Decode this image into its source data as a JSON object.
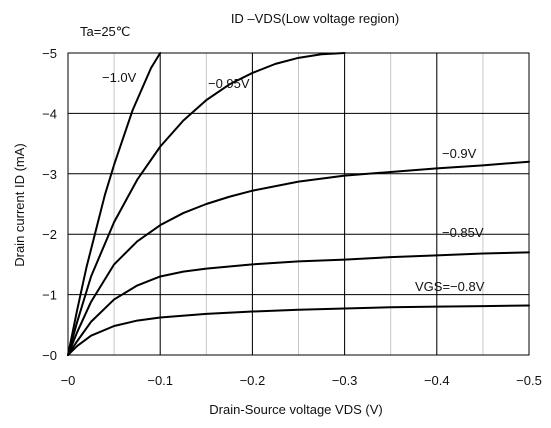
{
  "chart_data": {
    "type": "line",
    "title": "ID –VDS(Low voltage region)",
    "subtitle": "Ta=25℃",
    "xlabel": "Drain-Source voltage VDS (V)",
    "ylabel": "Drain current  ID (mA)",
    "xlim": [
      0,
      -0.5
    ],
    "ylim": [
      0,
      -5
    ],
    "x_ticks": [
      0,
      -0.1,
      -0.2,
      -0.3,
      -0.4,
      -0.5
    ],
    "x_tick_labels": [
      "−0",
      "−0.1",
      "−0.2",
      "−0.3",
      "−0.4",
      "−0.5"
    ],
    "y_ticks": [
      0,
      -1,
      -2,
      -3,
      -4,
      -5
    ],
    "y_tick_labels": [
      "−0",
      "−1",
      "−2",
      "−3",
      "−4",
      "−5"
    ],
    "grid": true,
    "minor_x_grid_step": -0.05,
    "series": [
      {
        "name": "−1.0V",
        "x": [
          0,
          -0.01,
          -0.02,
          -0.03,
          -0.04,
          -0.05,
          -0.06,
          -0.07,
          -0.08,
          -0.09,
          -0.1
        ],
        "values": [
          0,
          -0.75,
          -1.45,
          -2.05,
          -2.65,
          -3.15,
          -3.6,
          -4.05,
          -4.4,
          -4.75,
          -5.0
        ]
      },
      {
        "name": "−0.95V",
        "x": [
          0,
          -0.01,
          -0.025,
          -0.05,
          -0.075,
          -0.1,
          -0.125,
          -0.15,
          -0.175,
          -0.2,
          -0.225,
          -0.25,
          -0.275,
          -0.3
        ],
        "values": [
          0,
          -0.55,
          -1.3,
          -2.2,
          -2.9,
          -3.45,
          -3.88,
          -4.22,
          -4.48,
          -4.67,
          -4.82,
          -4.92,
          -4.98,
          -5.0
        ]
      },
      {
        "name": "−0.9V",
        "x": [
          0,
          -0.01,
          -0.025,
          -0.05,
          -0.075,
          -0.1,
          -0.125,
          -0.15,
          -0.175,
          -0.2,
          -0.25,
          -0.3,
          -0.35,
          -0.4,
          -0.45,
          -0.5
        ],
        "values": [
          0,
          -0.38,
          -0.88,
          -1.5,
          -1.88,
          -2.15,
          -2.35,
          -2.5,
          -2.62,
          -2.72,
          -2.87,
          -2.97,
          -3.03,
          -3.09,
          -3.14,
          -3.2
        ]
      },
      {
        "name": "−0.85V",
        "x": [
          0,
          -0.01,
          -0.025,
          -0.05,
          -0.075,
          -0.1,
          -0.125,
          -0.15,
          -0.2,
          -0.25,
          -0.3,
          -0.35,
          -0.4,
          -0.45,
          -0.5
        ],
        "values": [
          0,
          -0.23,
          -0.55,
          -0.92,
          -1.15,
          -1.3,
          -1.38,
          -1.43,
          -1.5,
          -1.55,
          -1.58,
          -1.62,
          -1.65,
          -1.68,
          -1.7
        ]
      },
      {
        "name": "VGS=−0.8V",
        "x": [
          0,
          -0.01,
          -0.025,
          -0.05,
          -0.075,
          -0.1,
          -0.15,
          -0.2,
          -0.25,
          -0.3,
          -0.35,
          -0.4,
          -0.45,
          -0.5
        ],
        "values": [
          0,
          -0.15,
          -0.32,
          -0.48,
          -0.57,
          -0.62,
          -0.68,
          -0.72,
          -0.75,
          -0.77,
          -0.79,
          -0.8,
          -0.81,
          -0.82
        ]
      }
    ],
    "curve_color": "#000000",
    "grid_color": "#000000",
    "minor_grid_color": "#c8c8c8"
  }
}
